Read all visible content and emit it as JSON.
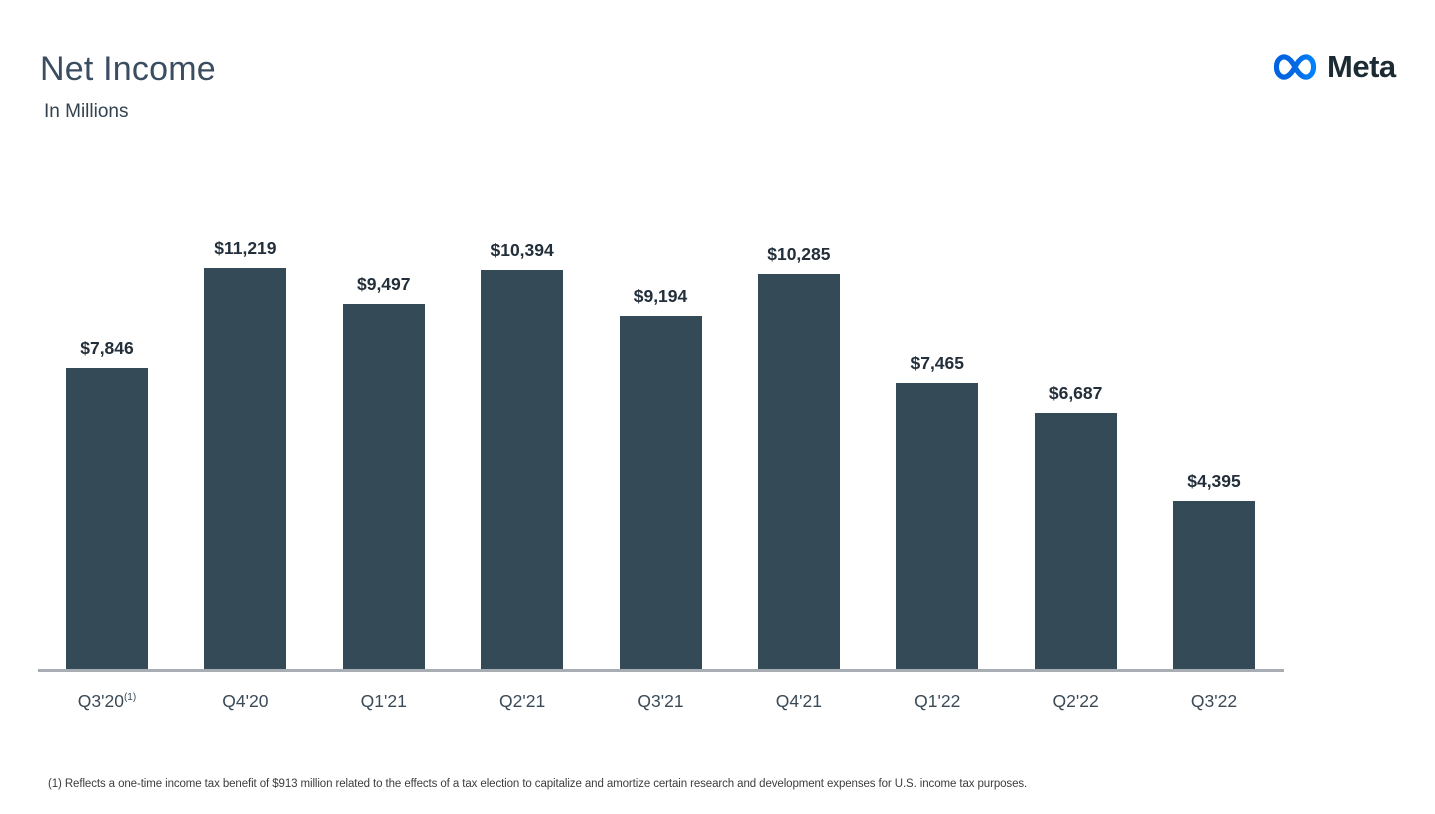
{
  "header": {
    "title": "Net Income",
    "subtitle": "In Millions",
    "logo_text": "Meta"
  },
  "chart_data": {
    "type": "bar",
    "title": "Net Income",
    "subtitle": "In Millions",
    "categories": [
      "Q3'20",
      "Q4'20",
      "Q1'21",
      "Q2'21",
      "Q3'21",
      "Q4'21",
      "Q1'22",
      "Q2'22",
      "Q3'22"
    ],
    "category_superscripts": [
      "(1)",
      "",
      "",
      "",
      "",
      "",
      "",
      "",
      ""
    ],
    "values": [
      7846,
      11219,
      9497,
      10394,
      9194,
      10285,
      7465,
      6687,
      4395
    ],
    "value_labels": [
      "$7,846",
      "$11,219",
      "$9,497",
      "$10,394",
      "$9,194",
      "$10,285",
      "$7,465",
      "$6,687",
      "$4,395"
    ],
    "ylim": [
      0,
      11219
    ],
    "grid": false,
    "legend": false,
    "bar_color": "#344a57",
    "axis_line_color": "#a7adb3",
    "value_label_color": "#232f3a",
    "category_label_color": "#3b4a57"
  },
  "branding": {
    "logo_blue_start": "#0064e0",
    "logo_blue_end": "#0082fb",
    "logo_text_color": "#1c2b33"
  },
  "footnote": "(1) Reflects a one-time income tax benefit of $913 million related to the effects of a tax election to capitalize and amortize certain research and development expenses for U.S. income tax purposes."
}
